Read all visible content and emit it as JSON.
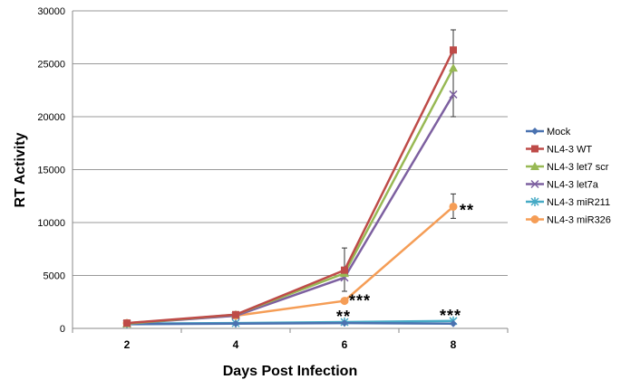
{
  "chart_data": {
    "type": "line",
    "xlabel": "Days Post Infection",
    "ylabel": "RT Activity",
    "categories": [
      "2",
      "4",
      "6",
      "8"
    ],
    "ylim": [
      0,
      30000
    ],
    "yticks": [
      "0",
      "5000",
      "10000",
      "15000",
      "20000",
      "25000",
      "30000"
    ],
    "grid": true,
    "legend": "right",
    "series": [
      {
        "name": "Mock",
        "color": "#4a72b0",
        "marker": "diamond",
        "values": [
          400,
          450,
          500,
          450
        ]
      },
      {
        "name": "NL4-3 WT",
        "color": "#be4b48",
        "marker": "square",
        "values": [
          500,
          1300,
          5500,
          26300
        ]
      },
      {
        "name": "NL4-3 let7 scr",
        "color": "#98b954",
        "marker": "triangle",
        "values": [
          450,
          1300,
          5200,
          24600
        ]
      },
      {
        "name": "NL4-3 let7a",
        "color": "#7d60a0",
        "marker": "x",
        "values": [
          450,
          1200,
          4800,
          22100
        ]
      },
      {
        "name": "NL4-3 miR211",
        "color": "#46aac5",
        "marker": "star",
        "values": [
          450,
          500,
          600,
          700
        ]
      },
      {
        "name": "NL4-3 miR326",
        "color": "#f59d56",
        "marker": "circle",
        "values": [
          500,
          1200,
          2600,
          11500
        ]
      }
    ],
    "error_bars": [
      {
        "category": "6",
        "low": 3500,
        "high": 7600
      },
      {
        "category": "8",
        "low": 20000,
        "high": 28200
      },
      {
        "category": "8",
        "low": 10400,
        "high": 12700
      }
    ],
    "annotations": [
      {
        "text": "***",
        "category": "6",
        "value": 2600
      },
      {
        "text": "**",
        "category": "6",
        "value": 600
      },
      {
        "text": "**",
        "category": "8",
        "value": 11500
      },
      {
        "text": "***",
        "category": "8",
        "value": 700
      }
    ]
  }
}
